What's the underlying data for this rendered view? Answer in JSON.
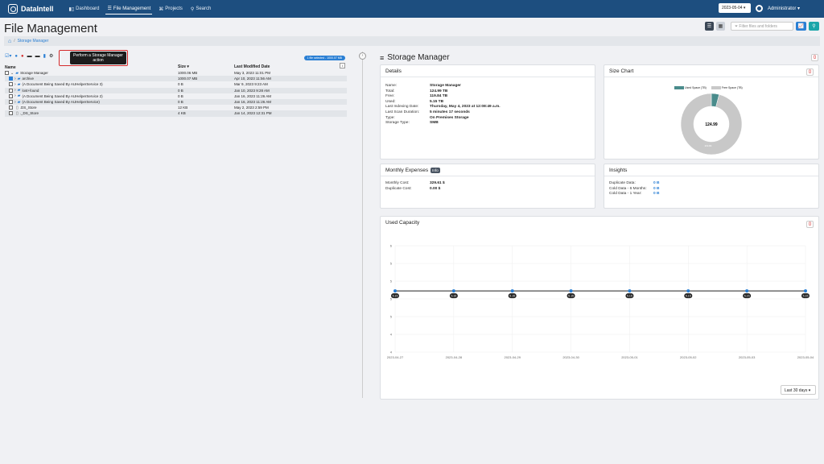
{
  "app": {
    "logo": "DataIntell"
  },
  "nav": [
    {
      "icon": "chart-icon",
      "label": "Dashboard"
    },
    {
      "icon": "list-icon",
      "label": "File Management"
    },
    {
      "icon": "sitemap-icon",
      "label": "Projects"
    },
    {
      "icon": "search-icon",
      "label": "Search"
    }
  ],
  "topright": {
    "date": "2023-05-04",
    "user": "Administrator"
  },
  "page": {
    "title": "File Management",
    "breadcrumb": "Storage Manager",
    "filter_placeholder": "Filter files and folders"
  },
  "left": {
    "tooltip": "Perform a Storage Manager action",
    "selected_badge": "1 file selected - 1000.07 MB",
    "columns": [
      "Name",
      "Size",
      "Last Modified Date"
    ],
    "rows": [
      {
        "name": "Storage Manager",
        "size": "1000.06 MB",
        "date": "May 3, 2023 11:01 PM",
        "type": "folder",
        "indent": 0,
        "checked": false
      },
      {
        "name": "archive",
        "size": "1000.07 MB",
        "date": "Apr 10, 2023 11:56 AM",
        "type": "folder",
        "indent": 1,
        "checked": true
      },
      {
        "name": "(A Document Being Saved By AUHelperService 3)",
        "size": "0 B",
        "date": "Mar 9, 2023 9:23 AM",
        "type": "folder",
        "indent": 1,
        "checked": false
      },
      {
        "name": "lost+found",
        "size": "0 B",
        "date": "Jan 10, 2023 9:28 AM",
        "type": "folder",
        "indent": 1,
        "checked": false
      },
      {
        "name": "(A Document Being Saved By AUHelperService 2)",
        "size": "0 B",
        "date": "Jan 16, 2023 11:26 AM",
        "type": "folder",
        "indent": 1,
        "checked": false
      },
      {
        "name": "(A Document Being Saved By AUHelperService)",
        "size": "0 B",
        "date": "Jan 16, 2023 11:26 AM",
        "type": "folder",
        "indent": 1,
        "checked": false
      },
      {
        "name": ".DS_Store",
        "size": "12 KB",
        "date": "May 2, 2023 2:59 PM",
        "type": "file",
        "indent": 1,
        "checked": false
      },
      {
        "name": "._DS_Store",
        "size": "4 KB",
        "date": "Jan 14, 2023 12:31 PM",
        "type": "file",
        "indent": 1,
        "checked": false
      }
    ]
  },
  "right": {
    "title": "Storage Manager",
    "details": {
      "title": "Details",
      "rows": [
        {
          "k": "Name:",
          "v": "Storage Manager"
        },
        {
          "k": "Total:",
          "v": "124.99 TB"
        },
        {
          "k": "Free:",
          "v": "119.84 TB"
        },
        {
          "k": "Used:",
          "v": "5.15 TB"
        },
        {
          "k": "Last Indexing Date:",
          "v": "Thursday, May 4, 2023 at 12:08:49 a.m."
        },
        {
          "k": "Last Scan Duration:",
          "v": "5 minutes 17 seconds"
        },
        {
          "k": "Type:",
          "v": "On Premises Storage"
        },
        {
          "k": "Storage Type:",
          "v": "SMB"
        }
      ]
    },
    "size_chart": {
      "title": "Size Chart",
      "legend_used": "Used Space (TB)",
      "legend_free": "Free Space (TB)",
      "center": "124.99",
      "free_label": "119.84",
      "used": 5.15,
      "free": 119.84,
      "used_color": "#4a8c8c",
      "free_color": "#c8c8c8"
    },
    "expenses": {
      "title": "Monthly Expenses",
      "badge": "Info",
      "rows": [
        {
          "k": "Monthly Cost:",
          "v": "329.61 $"
        },
        {
          "k": "Duplicate Cost:",
          "v": "0.00 $"
        }
      ]
    },
    "insights": {
      "title": "Insights",
      "rows": [
        {
          "k": "Duplicate Data:",
          "v": "0 B"
        },
        {
          "k": "Cold Data - 6 Months:",
          "v": "0 B"
        },
        {
          "k": "Cold Data - 1 Year:",
          "v": "0 B"
        }
      ]
    },
    "capacity": {
      "title": "Used Capacity",
      "period": "Last 30 days"
    }
  },
  "chart_data": {
    "type": "line",
    "title": "Used Capacity",
    "x": [
      "2023-04-27",
      "2023-04-28",
      "2023-04-29",
      "2023-04-30",
      "2023-05-01",
      "2023-05-02",
      "2023-05-03",
      "2023-05-04"
    ],
    "series": [
      {
        "name": "Used Capacity",
        "values": [
          5.15,
          5.15,
          5.15,
          5.15,
          5.15,
          5.15,
          5.15,
          5.15
        ]
      }
    ],
    "point_labels": [
      "5.15",
      "5.15",
      "5.15",
      "5.15",
      "5.15",
      "5.15",
      "5.15",
      "5.15"
    ],
    "y_ticks": [
      "6",
      "5",
      "5",
      "5",
      "5",
      "4",
      "4"
    ],
    "ylim": [
      4,
      6
    ]
  }
}
